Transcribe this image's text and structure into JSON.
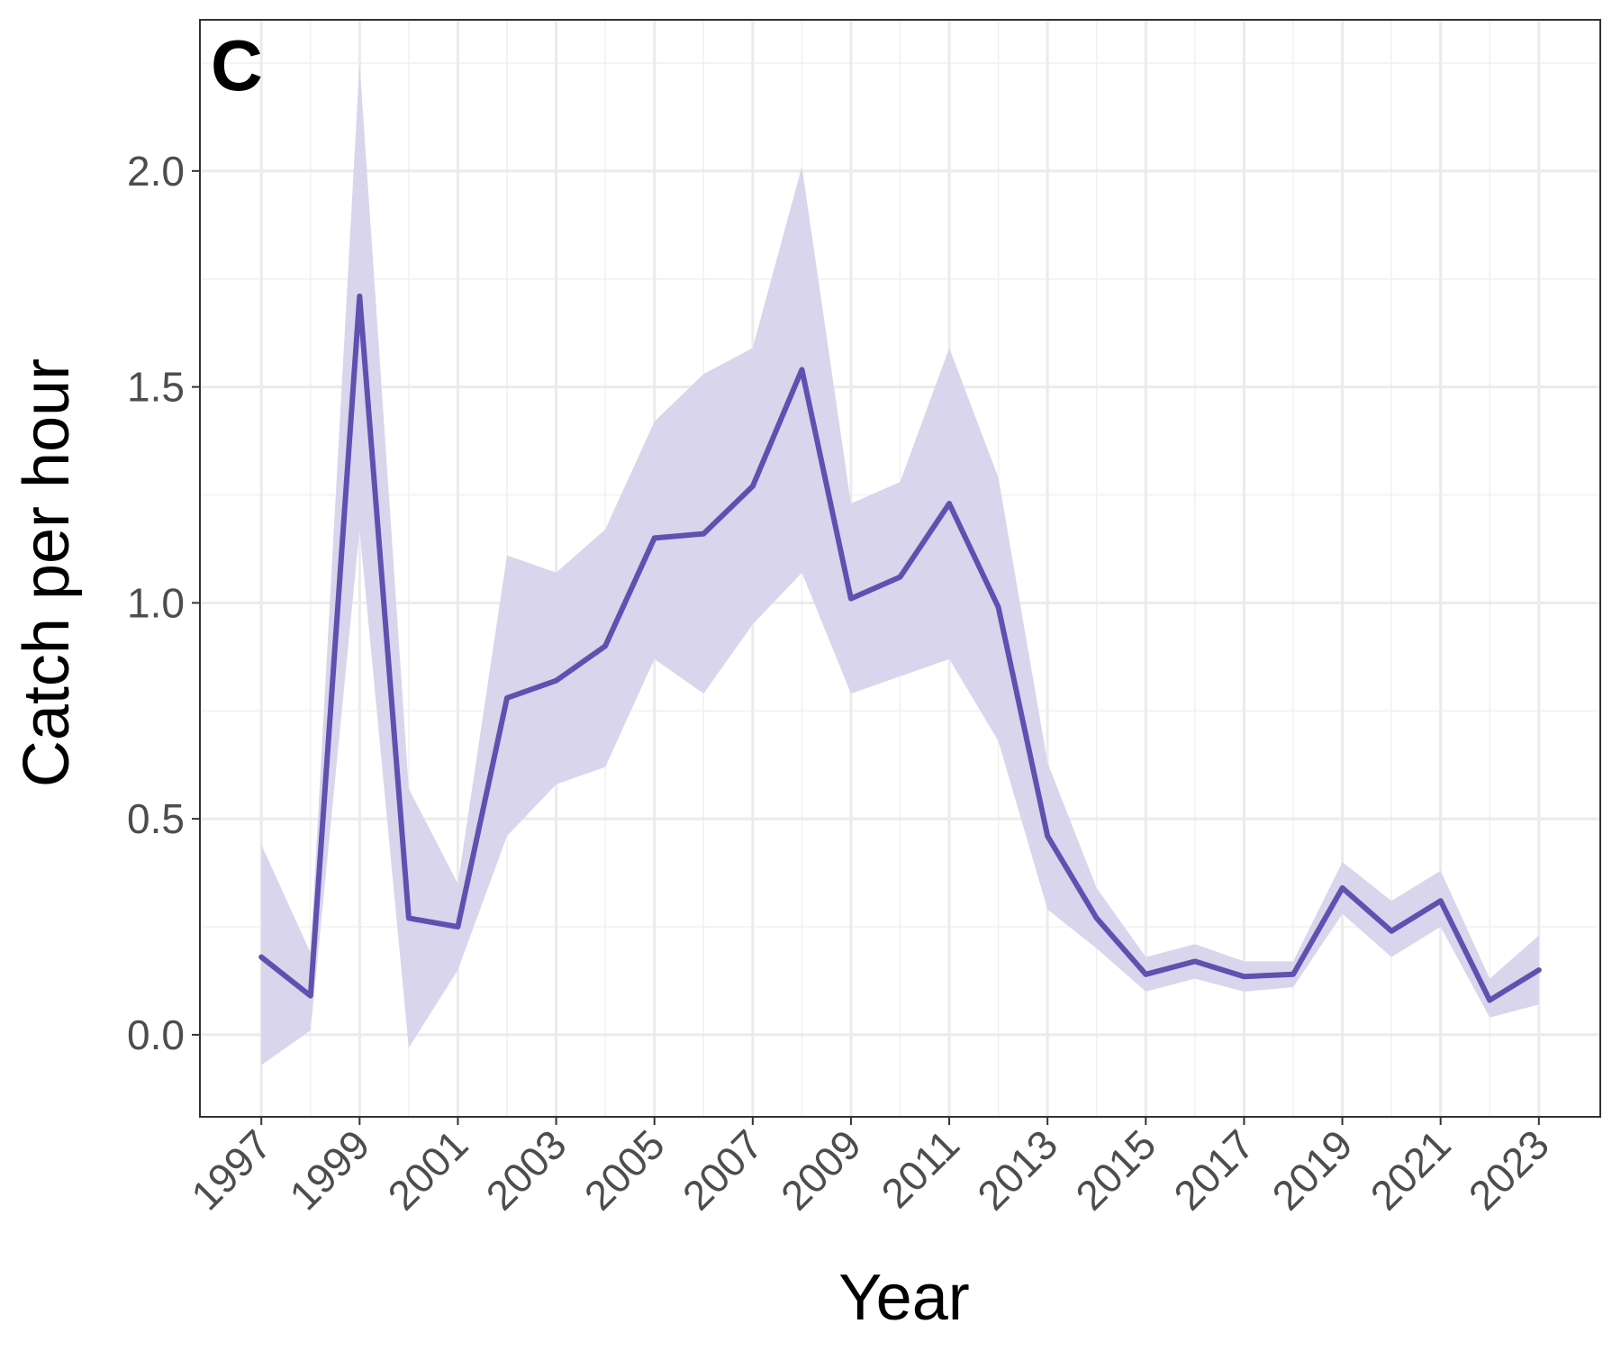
{
  "panel_label": "C",
  "chart_data": {
    "type": "line",
    "title": "",
    "xlabel": "Year",
    "ylabel": "Catch per hour",
    "x": [
      1997,
      1998,
      1999,
      2000,
      2001,
      2002,
      2003,
      2004,
      2005,
      2006,
      2007,
      2008,
      2009,
      2010,
      2011,
      2012,
      2013,
      2014,
      2015,
      2016,
      2017,
      2018,
      2019,
      2020,
      2021,
      2022,
      2023
    ],
    "series": [
      {
        "values": [
          0.18,
          0.09,
          1.71,
          0.27,
          0.25,
          0.78,
          0.82,
          0.9,
          1.15,
          1.16,
          1.27,
          1.54,
          1.01,
          1.06,
          1.23,
          0.99,
          0.46,
          0.27,
          0.14,
          0.17,
          0.135,
          0.14,
          0.34,
          0.24,
          0.31,
          0.08,
          0.15
        ],
        "lower": [
          -0.07,
          0.01,
          1.17,
          -0.03,
          0.15,
          0.46,
          0.58,
          0.62,
          0.87,
          0.79,
          0.95,
          1.07,
          0.79,
          0.83,
          0.87,
          0.68,
          0.29,
          0.2,
          0.1,
          0.13,
          0.1,
          0.11,
          0.28,
          0.18,
          0.25,
          0.04,
          0.07
        ],
        "upper": [
          0.44,
          0.19,
          2.25,
          0.57,
          0.35,
          1.11,
          1.07,
          1.17,
          1.42,
          1.53,
          1.59,
          2.01,
          1.23,
          1.28,
          1.59,
          1.29,
          0.63,
          0.34,
          0.18,
          0.21,
          0.17,
          0.17,
          0.4,
          0.31,
          0.38,
          0.13,
          0.23
        ],
        "color": "#6050b0",
        "band_color": "#d8d5ec"
      }
    ],
    "xlim": [
      1995.75,
      2024.25
    ],
    "ylim": [
      -0.19,
      2.35
    ],
    "y_ticks": [
      0.0,
      0.5,
      1.0,
      1.5,
      2.0
    ],
    "y_tick_labels": [
      "0.0",
      "0.5",
      "1.0",
      "1.5",
      "2.0"
    ],
    "x_ticks": [
      1997,
      1999,
      2001,
      2003,
      2005,
      2007,
      2009,
      2011,
      2013,
      2015,
      2017,
      2019,
      2021,
      2023
    ],
    "x_tick_labels": [
      "1997",
      "1999",
      "2001",
      "2003",
      "2005",
      "2007",
      "2009",
      "2011",
      "2013",
      "2015",
      "2017",
      "2019",
      "2021",
      "2023"
    ],
    "grid": true,
    "legend": "none"
  }
}
